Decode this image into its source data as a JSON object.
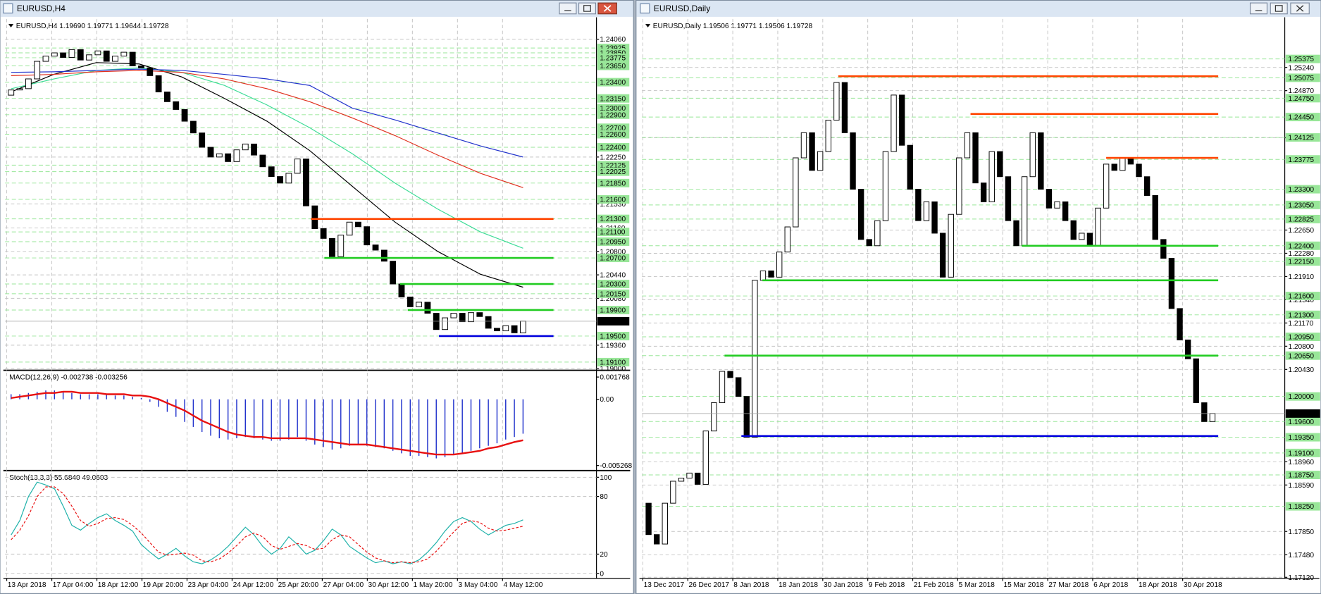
{
  "chart_data": [
    {
      "type": "candlestick",
      "title": "EURUSD,H4",
      "subtitle": "EURUSD,H4  1.19690 1.19771 1.19644 1.19728",
      "date_labels": [
        "13 Apr 2018",
        "17 Apr 04:00",
        "18 Apr 12:00",
        "19 Apr 20:00",
        "23 Apr 04:00",
        "24 Apr 12:00",
        "25 Apr 20:00",
        "27 Apr 04:00",
        "30 Apr 12:00",
        "1 May 20:00",
        "3 May 04:00",
        "4 May 12:00"
      ],
      "open": 1.232,
      "close": [
        1.2328,
        1.233,
        1.2345,
        1.2372,
        1.238,
        1.2385,
        1.2378,
        1.239,
        1.2374,
        1.2382,
        1.2388,
        1.2372,
        1.238,
        1.2386,
        1.2365,
        1.2362,
        1.235,
        1.2325,
        1.231,
        1.2298,
        1.228,
        1.2262,
        1.224,
        1.2225,
        1.223,
        1.2218,
        1.2236,
        1.2245,
        1.2228,
        1.221,
        1.2195,
        1.2185,
        1.22,
        1.2222,
        1.215,
        1.2115,
        1.21,
        1.2072,
        1.2105,
        1.2125,
        1.2118,
        1.209,
        1.2082,
        1.2065,
        1.203,
        1.201,
        1.1995,
        1.2002,
        1.1985,
        1.196,
        1.1978,
        1.1985,
        1.1972,
        1.1986,
        1.198,
        1.1962,
        1.1958,
        1.1966,
        1.1955,
        1.1973
      ],
      "up_color": "#ffffff",
      "down_color": "#000000",
      "moving_averages": [
        {
          "color": "#000000",
          "values": [
            1.2325,
            1.2352,
            1.237,
            1.2368,
            1.2348,
            1.2315,
            1.228,
            1.2235,
            1.218,
            1.2125,
            1.208,
            1.2045,
            1.2025
          ]
        },
        {
          "color": "#3ddc97",
          "values": [
            1.233,
            1.2345,
            1.2358,
            1.2362,
            1.2355,
            1.2335,
            1.2305,
            1.227,
            1.223,
            1.2185,
            1.2145,
            1.211,
            1.2085
          ]
        },
        {
          "color": "#e0301e",
          "values": [
            1.235,
            1.2352,
            1.2356,
            1.2358,
            1.2355,
            1.2345,
            1.233,
            1.231,
            1.2285,
            1.2258,
            1.2228,
            1.22,
            1.2178
          ]
        },
        {
          "color": "#2233cc",
          "values": [
            1.2355,
            1.2356,
            1.2358,
            1.236,
            1.2358,
            1.2352,
            1.2345,
            1.2335,
            1.23,
            1.2282,
            1.2262,
            1.2242,
            1.2225
          ]
        }
      ],
      "lines": [
        {
          "price": 1.213,
          "color": "#ff4500"
        },
        {
          "price": 1.207,
          "color": "#22cc22"
        },
        {
          "price": 1.203,
          "color": "#22cc22"
        },
        {
          "price": 1.199,
          "color": "#22cc22"
        },
        {
          "price": 1.195,
          "color": "#0000dd"
        }
      ],
      "ylim": [
        1.18987,
        1.24371
      ],
      "grid": true,
      "level_color": "#98e698",
      "yticks": [
        {
          "value": 1.2406,
          "label": "1.24060"
        },
        {
          "value": 1.2225,
          "label": "1.22250"
        },
        {
          "value": 1.2153,
          "label": "1.21530"
        },
        {
          "value": 1.2116,
          "label": "1.21160"
        },
        {
          "value": 1.208,
          "label": "1.20800"
        },
        {
          "value": 1.2044,
          "label": "1.20440"
        },
        {
          "value": 1.2008,
          "label": "1.20080"
        },
        {
          "value": 1.1936,
          "label": "1.19360"
        },
        {
          "value": 1.19,
          "label": "1.19000"
        }
      ],
      "levels": [
        1.23925,
        {
          "value": 1.2385,
          "label": "1.23850"
        },
        1.23775,
        {
          "value": 1.2365,
          "label": "1.23650"
        },
        {
          "value": 1.234,
          "label": "1.23400"
        },
        {
          "value": 1.2315,
          "label": "1.23150"
        },
        {
          "value": 1.23,
          "label": "1.23000"
        },
        {
          "value": 1.229,
          "label": "1.22900"
        },
        {
          "value": 1.227,
          "label": "1.22700"
        },
        {
          "value": 1.226,
          "label": "1.22600"
        },
        {
          "value": 1.224,
          "label": "1.22400"
        },
        1.22125,
        1.22025,
        {
          "value": 1.2185,
          "label": "1.21850"
        },
        {
          "value": 1.216,
          "label": "1.21600"
        },
        {
          "value": 1.213,
          "label": "1.21300"
        },
        {
          "value": 1.211,
          "label": "1.21100"
        },
        {
          "value": 1.2095,
          "label": "1.20950"
        },
        {
          "value": 1.207,
          "label": "1.20700"
        },
        {
          "value": 1.203,
          "label": "1.20300"
        },
        {
          "value": 1.2015,
          "label": "1.20150"
        },
        {
          "value": 1.199,
          "label": "1.19900"
        },
        {
          "value": 1.195,
          "label": "1.19500"
        },
        {
          "value": 1.191,
          "label": "1.19100"
        }
      ],
      "current": 1.19728,
      "indicators": [
        {
          "type": "macd",
          "label": "MACD(12,26,9) -0.002738 -0.003256",
          "ylim": [
            -0.005603,
            0.002237
          ],
          "yticks": [
            0.001768,
            {
              "value": 0,
              "label": "0.00"
            },
            -0.005268
          ],
          "series": [
            {
              "style": "histogram",
              "color": "#2233cc",
              "values": [
                0.0004,
                0.0004,
                0.0005,
                0.0006,
                0.0007,
                0.0007,
                0.0006,
                0.0005,
                0.0004,
                0.0004,
                0.0004,
                0.0004,
                0.0003,
                0.0003,
                0.0002,
                0.0001,
                -0.0002,
                -0.0006,
                -0.001,
                -0.0014,
                -0.0018,
                -0.0022,
                -0.0026,
                -0.0029,
                -0.0031,
                -0.0032,
                -0.0031,
                -0.003,
                -0.0031,
                -0.0032,
                -0.0033,
                -0.0033,
                -0.0032,
                -0.003,
                -0.0033,
                -0.0036,
                -0.0038,
                -0.004,
                -0.0039,
                -0.0037,
                -0.0036,
                -0.0037,
                -0.0038,
                -0.0039,
                -0.0041,
                -0.0043,
                -0.0045,
                -0.0045,
                -0.0046,
                -0.0047,
                -0.0046,
                -0.0044,
                -0.0043,
                -0.0041,
                -0.0039,
                -0.0037,
                -0.0035,
                -0.0032,
                -0.003,
                -0.002738
              ]
            },
            {
              "style": "line",
              "color": "#e81010",
              "values": [
                0.0001,
                0.0002,
                0.0003,
                0.0004,
                0.0005,
                0.0005,
                0.0006,
                0.0006,
                0.0005,
                0.0005,
                0.0005,
                0.0004,
                0.0004,
                0.0004,
                0.0003,
                0.0003,
                0.0002,
                0,
                -0.0003,
                -0.0006,
                -0.0009,
                -0.0013,
                -0.0017,
                -0.002,
                -0.0023,
                -0.0026,
                -0.0028,
                -0.0029,
                -0.003,
                -0.003,
                -0.0031,
                -0.0031,
                -0.0031,
                -0.0031,
                -0.0031,
                -0.0032,
                -0.0033,
                -0.0034,
                -0.0035,
                -0.0036,
                -0.0036,
                -0.0036,
                -0.0037,
                -0.0038,
                -0.0039,
                -0.004,
                -0.0041,
                -0.0042,
                -0.0043,
                -0.0044,
                -0.0044,
                -0.0044,
                -0.0043,
                -0.0042,
                -0.0041,
                -0.0039,
                -0.0038,
                -0.0036,
                -0.0034,
                -0.003256
              ]
            }
          ]
        },
        {
          "type": "stochastic",
          "label": "Stoch(13,3,3) 55.6840 49.0603",
          "ylim": [
            -5.3,
            106.1
          ],
          "yticks": [
            100,
            80,
            20,
            0
          ],
          "series": [
            {
              "style": "line",
              "color": "#20b2aa",
              "values": [
                40,
                55,
                80,
                95,
                92,
                88,
                70,
                50,
                45,
                52,
                58,
                62,
                55,
                50,
                44,
                30,
                22,
                15,
                20,
                26,
                18,
                12,
                10,
                14,
                20,
                28,
                38,
                48,
                40,
                28,
                20,
                26,
                38,
                30,
                20,
                24,
                34,
                46,
                40,
                28,
                22,
                16,
                11,
                13,
                10,
                12,
                10,
                14,
                22,
                32,
                44,
                54,
                58,
                54,
                46,
                40,
                45,
                50,
                52,
                55.684
              ]
            },
            {
              "style": "dashed",
              "color": "#e81010",
              "values": [
                35,
                45,
                60,
                80,
                90,
                90,
                83,
                70,
                55,
                49,
                52,
                57,
                58,
                56,
                50,
                42,
                32,
                22,
                19,
                20,
                21,
                19,
                13,
                12,
                15,
                21,
                29,
                38,
                42,
                38,
                29,
                25,
                28,
                31,
                29,
                25,
                26,
                35,
                40,
                38,
                30,
                22,
                16,
                13,
                11,
                12,
                11,
                12,
                15,
                23,
                33,
                43,
                52,
                55,
                53,
                47,
                44,
                45,
                47,
                49.0603
              ]
            }
          ]
        }
      ]
    },
    {
      "type": "candlestick",
      "title": "EURUSD,Daily",
      "subtitle": "EURUSD,Daily  1.19506 1.19771 1.19506 1.19728",
      "date_labels": [
        "13 Dec 2017",
        "26 Dec 2017",
        "8 Jan 2018",
        "18 Jan 2018",
        "30 Jan 2018",
        "9 Feb 2018",
        "21 Feb 2018",
        "5 Mar 2018",
        "15 Mar 2018",
        "27 Mar 2018",
        "6 Apr 2018",
        "18 Apr 2018",
        "30 Apr 2018"
      ],
      "open": 1.183,
      "close": [
        1.178,
        1.1765,
        1.183,
        1.1865,
        1.187,
        1.1878,
        1.186,
        1.1945,
        1.199,
        1.204,
        1.203,
        1.2,
        1.1935,
        1.2185,
        1.22,
        1.219,
        1.223,
        1.227,
        1.238,
        1.242,
        1.236,
        1.239,
        1.244,
        1.25,
        1.242,
        1.233,
        1.225,
        1.224,
        1.228,
        1.239,
        1.248,
        1.24,
        1.233,
        1.228,
        1.231,
        1.226,
        1.219,
        1.229,
        1.238,
        1.242,
        1.234,
        1.231,
        1.239,
        1.235,
        1.228,
        1.224,
        1.235,
        1.242,
        1.233,
        1.23,
        1.231,
        1.228,
        1.225,
        1.226,
        1.224,
        1.23,
        1.237,
        1.236,
        1.238,
        1.237,
        1.235,
        1.232,
        1.225,
        1.222,
        1.214,
        1.209,
        1.206,
        1.199,
        1.196,
        1.1973
      ],
      "up_color": "#ffffff",
      "down_color": "#000000",
      "lines": [
        {
          "price": 1.251,
          "color": "#ff4500"
        },
        {
          "price": 1.245,
          "color": "#ff4500"
        },
        {
          "price": 1.238,
          "color": "#ff4500"
        },
        {
          "price": 1.224,
          "color": "#22cc22"
        },
        {
          "price": 1.2185,
          "color": "#22cc22"
        },
        {
          "price": 1.2065,
          "color": "#22cc22"
        },
        {
          "price": 1.1937,
          "color": "#0000dd"
        }
      ],
      "ylim": [
        1.17102,
        1.26012
      ],
      "grid": true,
      "level_color": "#98e698",
      "yticks": [
        {
          "value": 1.2524,
          "label": "1.25240"
        },
        {
          "value": 1.2487,
          "label": "1.24870"
        },
        {
          "value": 1.2412,
          "label": "1.24120"
        },
        {
          "value": 1.2265,
          "label": "1.22650"
        },
        {
          "value": 1.2228,
          "label": "1.22280"
        },
        {
          "value": 1.2191,
          "label": "1.21910"
        },
        {
          "value": 1.2154,
          "label": "1.21540"
        },
        {
          "value": 1.2117,
          "label": "1.21170"
        },
        {
          "value": 1.208,
          "label": "1.20800"
        },
        {
          "value": 1.2043,
          "label": "1.20430"
        },
        {
          "value": 1.1896,
          "label": "1.18960"
        },
        {
          "value": 1.1859,
          "label": "1.18590"
        },
        {
          "value": 1.1785,
          "label": "1.17850"
        },
        {
          "value": 1.1748,
          "label": "1.17480"
        },
        {
          "value": 1.1712,
          "label": "1.17120"
        }
      ],
      "levels": [
        1.25375,
        1.25075,
        {
          "value": 1.2475,
          "label": "1.24750"
        },
        {
          "value": 1.2445,
          "label": "1.24450"
        },
        1.24125,
        1.23775,
        {
          "value": 1.233,
          "label": "1.23300"
        },
        {
          "value": 1.2305,
          "label": "1.23050"
        },
        1.22825,
        {
          "value": 1.224,
          "label": "1.22400"
        },
        {
          "value": 1.2215,
          "label": "1.22150"
        },
        {
          "value": 1.216,
          "label": "1.21600"
        },
        {
          "value": 1.213,
          "label": "1.21300"
        },
        {
          "value": 1.2095,
          "label": "1.20950"
        },
        {
          "value": 1.2065,
          "label": "1.20650"
        },
        {
          "value": 1.2,
          "label": "1.20000"
        },
        {
          "value": 1.196,
          "label": "1.19600"
        },
        {
          "value": 1.1935,
          "label": "1.19350"
        },
        {
          "value": 1.191,
          "label": "1.19100"
        },
        {
          "value": 1.1875,
          "label": "1.18750"
        },
        {
          "value": 1.1825,
          "label": "1.18250"
        }
      ],
      "current": 1.19728
    }
  ]
}
